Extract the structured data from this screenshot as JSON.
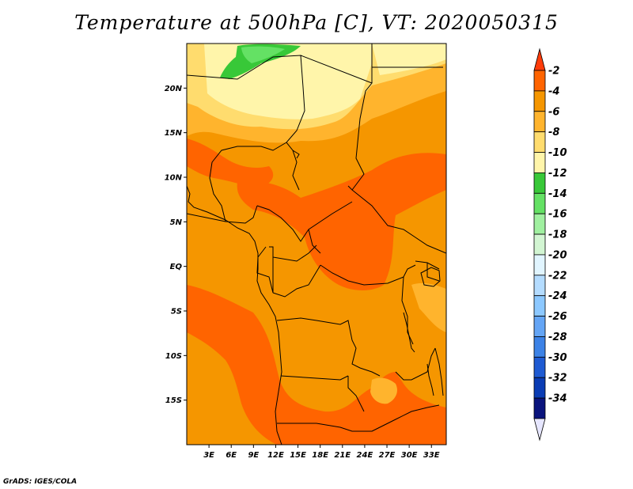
{
  "title": "Temperature at 500hPa [C], VT: 2020050315",
  "credit": "GrADS: IGES/COLA",
  "map": {
    "lon_range": [
      0,
      35
    ],
    "lat_range": [
      -20,
      25
    ],
    "lat_ticks": [
      {
        "value": 20,
        "label": "20N"
      },
      {
        "value": 15,
        "label": "15N"
      },
      {
        "value": 10,
        "label": "10N"
      },
      {
        "value": 5,
        "label": "5N"
      },
      {
        "value": 0,
        "label": "EQ"
      },
      {
        "value": -5,
        "label": "5S"
      },
      {
        "value": -10,
        "label": "10S"
      },
      {
        "value": -15,
        "label": "15S"
      }
    ],
    "lon_ticks": [
      {
        "value": 3,
        "label": "3E"
      },
      {
        "value": 6,
        "label": "6E"
      },
      {
        "value": 9,
        "label": "9E"
      },
      {
        "value": 12,
        "label": "12E"
      },
      {
        "value": 15,
        "label": "15E"
      },
      {
        "value": 18,
        "label": "18E"
      },
      {
        "value": 21,
        "label": "21E"
      },
      {
        "value": 24,
        "label": "24E"
      },
      {
        "value": 27,
        "label": "27E"
      },
      {
        "value": 30,
        "label": "30E"
      },
      {
        "value": 33,
        "label": "33E"
      }
    ]
  },
  "colorbar": {
    "labels": [
      "-2",
      "-4",
      "-6",
      "-8",
      "-10",
      "-12",
      "-14",
      "-16",
      "-18",
      "-20",
      "-22",
      "-24",
      "-26",
      "-28",
      "-30",
      "-32",
      "-34"
    ],
    "colors_top_to_bottom": [
      "#ff3c0a",
      "#ff6400",
      "#f59600",
      "#ffb42d",
      "#ffdc6e",
      "#fff5aa",
      "#38c838",
      "#64e164",
      "#a0f0a0",
      "#d2f5d2",
      "#e1f5ff",
      "#b4dcff",
      "#8cc8ff",
      "#64a5f5",
      "#3c82e6",
      "#1e5ad2",
      "#0a3cb4",
      "#0a147d",
      "#e6e6ff"
    ]
  },
  "fields": {
    "orange_dark": "#ff6400",
    "orange": "#f59600",
    "orange_light": "#ffb42d",
    "yellow": "#ffdc6e",
    "pale_yellow": "#fff5aa",
    "green": "#38c838"
  }
}
